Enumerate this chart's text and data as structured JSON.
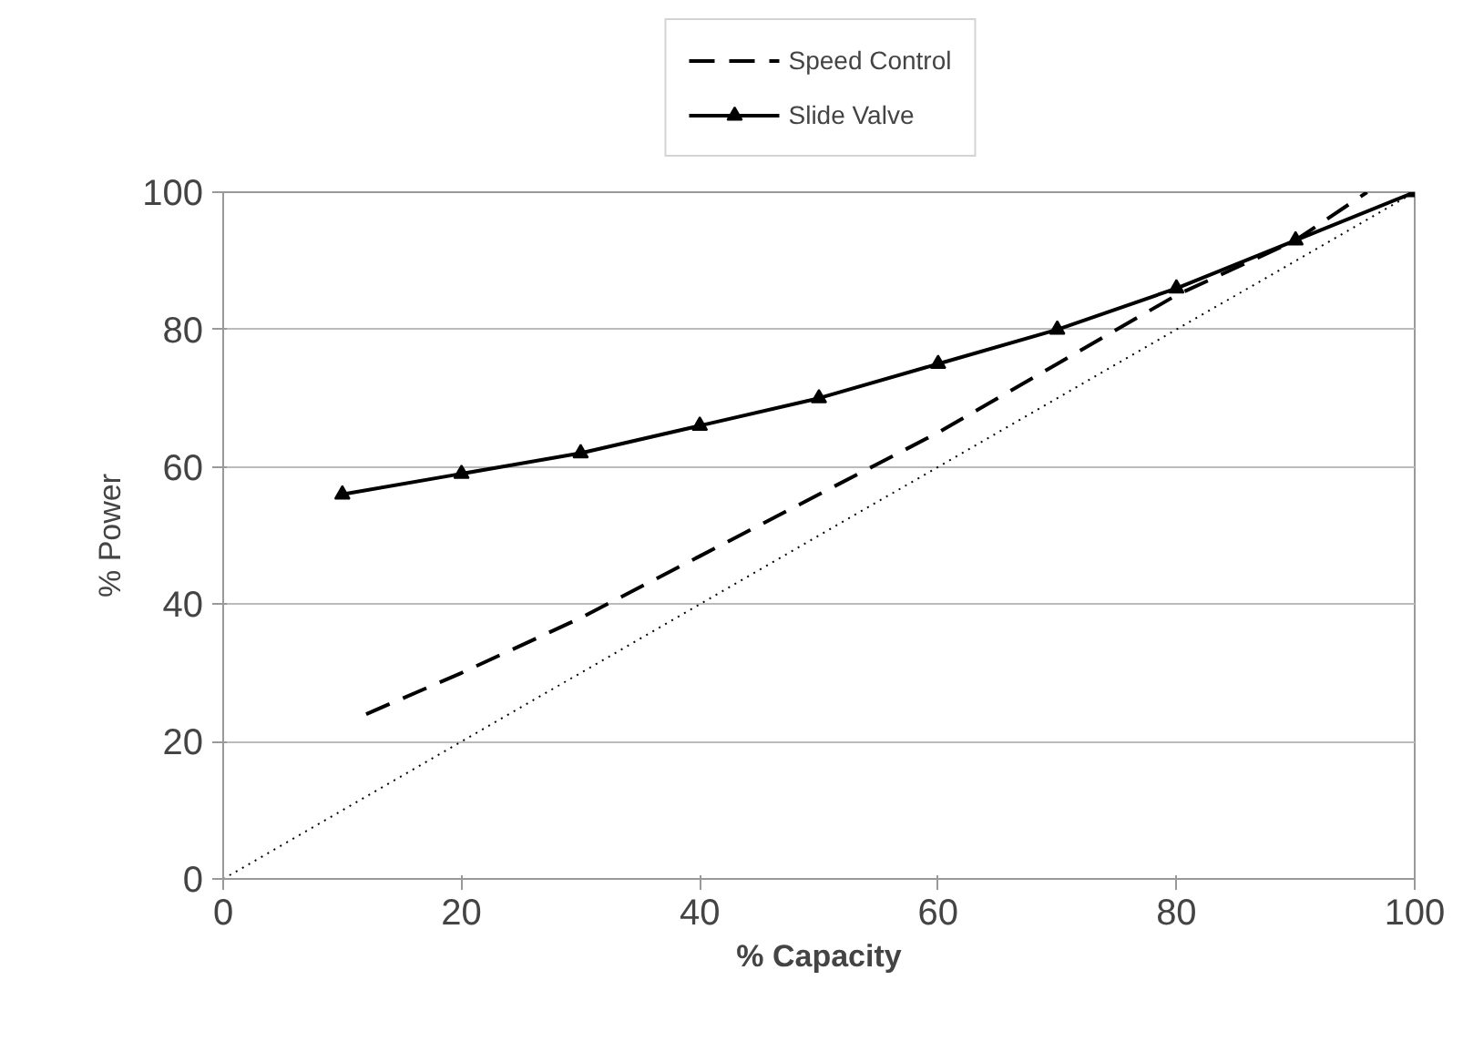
{
  "chart_data": {
    "type": "line",
    "xlabel": "% Capacity",
    "ylabel": "% Power",
    "xlim": [
      0,
      100
    ],
    "ylim": [
      0,
      100
    ],
    "xticks": [
      0,
      20,
      40,
      60,
      80,
      100
    ],
    "yticks": [
      0,
      20,
      40,
      60,
      80,
      100
    ],
    "grid": "y",
    "legend": "top",
    "series": [
      {
        "name": "Speed Control",
        "color": "#000000",
        "line_style": "dashed",
        "marker": "none",
        "x": [
          12,
          20,
          30,
          40,
          50,
          60,
          70,
          80,
          90,
          96
        ],
        "values": [
          24,
          30,
          38,
          47,
          56,
          65,
          75,
          85,
          93,
          100
        ]
      },
      {
        "name": "Slide Valve",
        "color": "#000000",
        "line_style": "solid",
        "marker": "triangle",
        "x": [
          10,
          20,
          30,
          40,
          50,
          60,
          70,
          80,
          90,
          100
        ],
        "values": [
          56,
          59,
          62,
          66,
          70,
          75,
          80,
          86,
          93,
          100
        ]
      },
      {
        "color": "#000000",
        "line_style": "dotted",
        "marker": "none",
        "x": [
          0,
          100
        ],
        "values": [
          0,
          100
        ]
      }
    ]
  }
}
